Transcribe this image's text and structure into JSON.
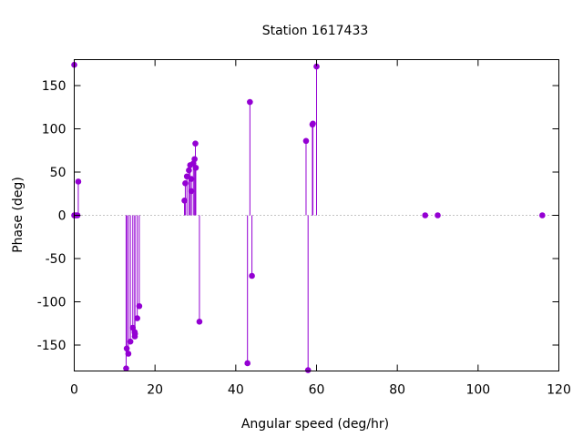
{
  "chart_data": {
    "type": "scatter",
    "style": "impulses-with-points",
    "title": "Station 1617433",
    "xlabel": "Angular speed (deg/hr)",
    "ylabel": "Phase (deg)",
    "xlim": [
      0,
      120
    ],
    "ylim": [
      -180,
      180
    ],
    "xticks": [
      0,
      20,
      40,
      60,
      80,
      100,
      120
    ],
    "yticks": [
      -150,
      -100,
      -50,
      0,
      50,
      100,
      150
    ],
    "grid": false,
    "zero_line": true,
    "color": "#9400d3",
    "series": [
      {
        "points": [
          [
            0.0,
            174
          ],
          [
            0.0,
            0
          ],
          [
            0.04,
            0
          ],
          [
            0.08,
            0
          ],
          [
            0.5,
            0
          ],
          [
            0.8,
            0
          ],
          [
            1.0,
            39
          ],
          [
            12.85,
            -177
          ],
          [
            13.0,
            -154
          ],
          [
            13.4,
            -160
          ],
          [
            13.9,
            -146
          ],
          [
            14.5,
            -130
          ],
          [
            14.96,
            -135
          ],
          [
            15.0,
            -140
          ],
          [
            15.04,
            -137
          ],
          [
            15.6,
            -119
          ],
          [
            16.1,
            -105
          ],
          [
            27.3,
            17
          ],
          [
            27.5,
            37
          ],
          [
            27.9,
            45
          ],
          [
            28.4,
            52
          ],
          [
            28.7,
            58
          ],
          [
            29.0,
            42
          ],
          [
            29.0,
            28
          ],
          [
            29.5,
            60
          ],
          [
            29.8,
            65
          ],
          [
            30.0,
            83
          ],
          [
            30.1,
            55
          ],
          [
            31.0,
            -123
          ],
          [
            42.9,
            -171
          ],
          [
            43.5,
            131
          ],
          [
            44.0,
            -70
          ],
          [
            57.4,
            86
          ],
          [
            57.9,
            -179
          ],
          [
            58.98,
            105
          ],
          [
            59.1,
            106
          ],
          [
            60.0,
            172
          ],
          [
            86.9,
            0
          ],
          [
            90.0,
            0
          ],
          [
            115.9,
            0
          ]
        ]
      }
    ]
  }
}
